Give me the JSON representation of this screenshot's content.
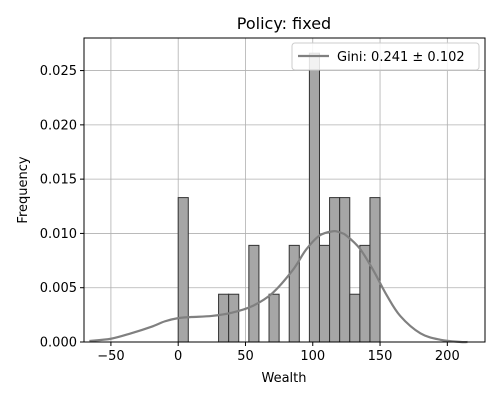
{
  "chart_data": {
    "type": "bar",
    "title": "Policy: fixed",
    "xlabel": "Wealth",
    "ylabel": "Frequency",
    "xlim": [
      -70,
      228
    ],
    "ylim": [
      0,
      0.028
    ],
    "xticks": [
      -50,
      0,
      50,
      100,
      150,
      200
    ],
    "yticks": [
      0.0,
      0.005,
      0.01,
      0.015,
      0.02,
      0.025
    ],
    "xtick_labels": [
      "−50",
      "0",
      "50",
      "100",
      "150",
      "200"
    ],
    "ytick_labels": [
      "0.000",
      "0.005",
      "0.010",
      "0.015",
      "0.020",
      "0.025"
    ],
    "grid": true,
    "legend": {
      "placement": "top-right",
      "label": "Gini: 0.241 ± 0.102"
    },
    "histogram": {
      "bin_width": 7.5,
      "bar_color": "#a6a6a6",
      "edge_color": "#333333",
      "bins": [
        {
          "left": 0.0,
          "value": 0.0133
        },
        {
          "left": 30.0,
          "value": 0.0044
        },
        {
          "left": 37.5,
          "value": 0.0044
        },
        {
          "left": 52.5,
          "value": 0.0089
        },
        {
          "left": 67.5,
          "value": 0.0044
        },
        {
          "left": 82.5,
          "value": 0.0089
        },
        {
          "left": 97.5,
          "value": 0.0266
        },
        {
          "left": 105.0,
          "value": 0.0089
        },
        {
          "left": 112.5,
          "value": 0.0133
        },
        {
          "left": 120.0,
          "value": 0.0133
        },
        {
          "left": 127.5,
          "value": 0.0044
        },
        {
          "left": 135.0,
          "value": 0.0089
        },
        {
          "left": 142.5,
          "value": 0.0133
        }
      ]
    },
    "kde": {
      "color": "#808080",
      "x": [
        -66,
        -50,
        -35,
        -20,
        -10,
        0,
        10,
        25,
        40,
        55,
        70,
        85,
        95,
        105,
        115,
        120,
        125,
        135,
        145,
        155,
        165,
        180,
        195,
        210,
        215
      ],
      "y": [
        0.0001,
        0.0003,
        0.0008,
        0.0014,
        0.0019,
        0.0022,
        0.0023,
        0.0024,
        0.0027,
        0.0033,
        0.0045,
        0.0066,
        0.0085,
        0.0098,
        0.0102,
        0.0101,
        0.0098,
        0.0086,
        0.0066,
        0.0043,
        0.0024,
        0.0008,
        0.0002,
        0.0,
        0.0
      ]
    }
  }
}
